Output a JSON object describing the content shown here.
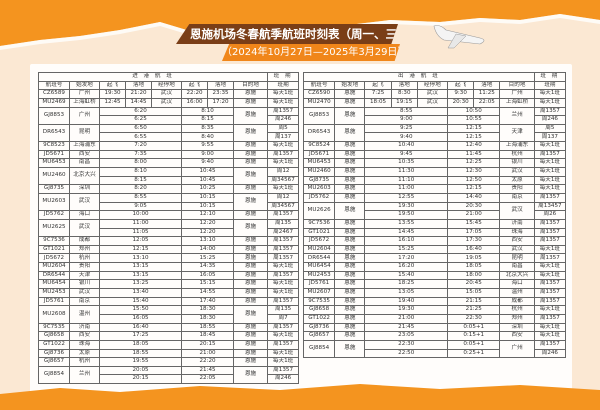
{
  "title": "恩施机场冬春航季航班时刻表（周一、三、五、七）",
  "subtitle": "（2024年10月27日—2025年3月29日）",
  "colors": {
    "orange": "#f0861a",
    "brown": "#7a3e17",
    "cream": "#fbe8d3"
  },
  "inbound": {
    "section": "进 港 航 班",
    "schedule": "班 期",
    "headers": [
      "航班号",
      "始发地",
      "起飞",
      "落地",
      "经停地",
      "起飞",
      "落地",
      "目的地",
      "班期"
    ],
    "rows": [
      {
        "flight": "CZ6589",
        "from": "广州",
        "dep": "19:30",
        "arr": "21:20",
        "via": "武汉",
        "dep2": "22:20",
        "arr2": "23:35",
        "to": "恩施",
        "days": "每天1班"
      },
      {
        "flight": "MU2469",
        "from": "上海虹桥",
        "dep": "12:45",
        "arr": "14:45",
        "via": "武汉",
        "dep2": "16:00",
        "arr2": "17:20",
        "to": "恩施",
        "days": "每天1班"
      },
      {
        "flight": "GJ8853",
        "from": "广州",
        "to": "恩施",
        "legs": [
          {
            "dep": "6:20",
            "arr": "8:10",
            "days": "周1357"
          },
          {
            "dep": "6:25",
            "arr": "8:15",
            "days": "周246"
          }
        ]
      },
      {
        "flight": "DR6543",
        "from": "昆明",
        "to": "恩施",
        "legs": [
          {
            "dep": "6:50",
            "arr": "8:35",
            "days": "周5"
          },
          {
            "dep": "6:55",
            "arr": "8:40",
            "days": "周137"
          }
        ]
      },
      {
        "flight": "9C8523",
        "from": "上海浦东",
        "to": "恩施",
        "legs": [
          {
            "dep": "7:20",
            "arr": "9:55",
            "days": "每天1班"
          }
        ]
      },
      {
        "flight": "JD5671",
        "from": "西安",
        "to": "恩施",
        "legs": [
          {
            "dep": "7:35",
            "arr": "9:00",
            "days": "周1357"
          }
        ]
      },
      {
        "flight": "MU6453",
        "from": "南昌",
        "to": "恩施",
        "legs": [
          {
            "dep": "8:00",
            "arr": "9:40",
            "days": "每天1班"
          }
        ]
      },
      {
        "flight": "MU2460",
        "from": "北京大兴",
        "to": "恩施",
        "legs": [
          {
            "dep": "8:10",
            "arr": "10:45",
            "days": "周12"
          },
          {
            "dep": "8:15",
            "arr": "10:45",
            "days": "周34567"
          }
        ]
      },
      {
        "flight": "GJ8735",
        "from": "深圳",
        "to": "恩施",
        "legs": [
          {
            "dep": "8:20",
            "arr": "10:25",
            "days": "每天1班"
          }
        ]
      },
      {
        "flight": "MU2603",
        "from": "武汉",
        "to": "恩施",
        "legs": [
          {
            "dep": "8:55",
            "arr": "10:15",
            "days": "周12"
          },
          {
            "dep": "9:05",
            "arr": "10:15",
            "days": "周34567"
          }
        ]
      },
      {
        "flight": "JD5762",
        "from": "海口",
        "to": "恩施",
        "legs": [
          {
            "dep": "10:00",
            "arr": "12:10",
            "days": "周1357"
          }
        ]
      },
      {
        "flight": "MU2625",
        "from": "武汉",
        "to": "恩施",
        "legs": [
          {
            "dep": "11:00",
            "arr": "12:20",
            "days": "周135"
          },
          {
            "dep": "11:05",
            "arr": "12:20",
            "days": "周2467"
          }
        ]
      },
      {
        "flight": "9C7536",
        "from": "成都",
        "to": "恩施",
        "legs": [
          {
            "dep": "12:05",
            "arr": "13:10",
            "days": "周1357"
          }
        ]
      },
      {
        "flight": "GT1021",
        "from": "郑州",
        "to": "恩施",
        "legs": [
          {
            "dep": "12:15",
            "arr": "14:00",
            "days": "周1357"
          }
        ]
      },
      {
        "flight": "JD5672",
        "from": "杭州",
        "to": "恩施",
        "legs": [
          {
            "dep": "13:10",
            "arr": "15:25",
            "days": "周1357"
          }
        ]
      },
      {
        "flight": "MU2604",
        "from": "贵阳",
        "to": "恩施",
        "legs": [
          {
            "dep": "13:15",
            "arr": "14:35",
            "days": "每天1班"
          }
        ]
      },
      {
        "flight": "DR6544",
        "from": "天津",
        "to": "恩施",
        "legs": [
          {
            "dep": "13:15",
            "arr": "16:05",
            "days": "周1357"
          }
        ]
      },
      {
        "flight": "MU6454",
        "from": "银川",
        "to": "恩施",
        "legs": [
          {
            "dep": "13:25",
            "arr": "15:15",
            "days": "每天1班"
          }
        ]
      },
      {
        "flight": "MU2453",
        "from": "武汉",
        "to": "恩施",
        "legs": [
          {
            "dep": "13:40",
            "arr": "14:55",
            "days": "每天1班"
          }
        ]
      },
      {
        "flight": "JD5761",
        "from": "南京",
        "to": "恩施",
        "legs": [
          {
            "dep": "15:40",
            "arr": "17:40",
            "days": "周1357"
          }
        ]
      },
      {
        "flight": "MU2608",
        "from": "温州",
        "to": "恩施",
        "legs": [
          {
            "dep": "15:50",
            "arr": "18:30",
            "days": "周135"
          },
          {
            "dep": "16:05",
            "arr": "18:30",
            "days": "周7"
          }
        ]
      },
      {
        "flight": "9C7535",
        "from": "济南",
        "to": "恩施",
        "legs": [
          {
            "dep": "16:40",
            "arr": "18:55",
            "days": "周1357"
          }
        ]
      },
      {
        "flight": "GJ8658",
        "from": "西安",
        "to": "恩施",
        "legs": [
          {
            "dep": "17:25",
            "arr": "18:45",
            "days": "每天1班"
          }
        ]
      },
      {
        "flight": "GT1022",
        "from": "珠海",
        "to": "恩施",
        "legs": [
          {
            "dep": "18:05",
            "arr": "20:15",
            "days": "周1357"
          }
        ]
      },
      {
        "flight": "GJ8736",
        "from": "太原",
        "to": "恩施",
        "legs": [
          {
            "dep": "18:55",
            "arr": "21:00",
            "days": "每天1班"
          }
        ]
      },
      {
        "flight": "GJ8657",
        "from": "杭州",
        "to": "恩施",
        "legs": [
          {
            "dep": "19:55",
            "arr": "22:20",
            "days": "每天1班"
          }
        ]
      },
      {
        "flight": "GJ8854",
        "from": "兰州",
        "to": "恩施",
        "legs": [
          {
            "dep": "20:05",
            "arr": "21:45",
            "days": "周1357"
          },
          {
            "dep": "20:15",
            "arr": "22:05",
            "days": "周246"
          }
        ]
      }
    ]
  },
  "outbound": {
    "section": "出 港 航 班",
    "schedule": "班 期",
    "headers": [
      "航班号",
      "始发地",
      "起飞",
      "落地",
      "经停地",
      "起飞",
      "落地",
      "目的地",
      "班期"
    ],
    "rows": [
      {
        "flight": "CZ6590",
        "from": "恩施",
        "dep": "7:25",
        "arr": "8:30",
        "via": "武汉",
        "dep2": "9:30",
        "arr2": "11:25",
        "to": "广州",
        "days": "每天1班"
      },
      {
        "flight": "MU2470",
        "from": "恩施",
        "dep": "18:05",
        "arr": "19:15",
        "via": "武汉",
        "dep2": "20:30",
        "arr2": "22:05",
        "to": "上海虹桥",
        "days": "每天1班"
      },
      {
        "flight": "GJ8853",
        "from": "恩施",
        "to": "兰州",
        "legs": [
          {
            "dep": "8:55",
            "arr": "10:50",
            "days": "周1357"
          },
          {
            "dep": "9:00",
            "arr": "10:55",
            "days": "周246"
          }
        ]
      },
      {
        "flight": "DR6543",
        "from": "恩施",
        "to": "天津",
        "legs": [
          {
            "dep": "9:25",
            "arr": "12:15",
            "days": "周5"
          },
          {
            "dep": "9:40",
            "arr": "12:15",
            "days": "周137"
          }
        ]
      },
      {
        "flight": "9C8524",
        "from": "恩施",
        "to": "上海浦东",
        "legs": [
          {
            "dep": "10:40",
            "arr": "12:40",
            "days": "每天1班"
          }
        ]
      },
      {
        "flight": "JD5671",
        "from": "恩施",
        "to": "杭州",
        "legs": [
          {
            "dep": "9:45",
            "arr": "11:45",
            "days": "周1357"
          }
        ]
      },
      {
        "flight": "MU6453",
        "from": "恩施",
        "to": "银川",
        "legs": [
          {
            "dep": "10:35",
            "arr": "12:25",
            "days": "每天1班"
          }
        ]
      },
      {
        "flight": "MU2460",
        "from": "恩施",
        "to": "武汉",
        "legs": [
          {
            "dep": "11:30",
            "arr": "12:30",
            "days": "每天1班"
          }
        ]
      },
      {
        "flight": "GJ8735",
        "from": "恩施",
        "to": "太原",
        "legs": [
          {
            "dep": "11:10",
            "arr": "12:50",
            "days": "每天1班"
          }
        ]
      },
      {
        "flight": "MU2603",
        "from": "恩施",
        "to": "贵阳",
        "legs": [
          {
            "dep": "11:00",
            "arr": "12:15",
            "days": "每天1班"
          }
        ]
      },
      {
        "flight": "JD5762",
        "from": "恩施",
        "to": "南京",
        "legs": [
          {
            "dep": "12:55",
            "arr": "14:40",
            "days": "周1357"
          }
        ]
      },
      {
        "flight": "MU2626",
        "from": "恩施",
        "to": "武汉",
        "legs": [
          {
            "dep": "19:30",
            "arr": "20:30",
            "days": "周13457"
          },
          {
            "dep": "19:50",
            "arr": "21:00",
            "days": "周26"
          }
        ]
      },
      {
        "flight": "9C7536",
        "from": "恩施",
        "to": "济南",
        "legs": [
          {
            "dep": "13:55",
            "arr": "15:45",
            "days": "周1357"
          }
        ]
      },
      {
        "flight": "GT1021",
        "from": "恩施",
        "to": "珠海",
        "legs": [
          {
            "dep": "14:45",
            "arr": "17:05",
            "days": "周1357"
          }
        ]
      },
      {
        "flight": "JD5672",
        "from": "恩施",
        "to": "西安",
        "legs": [
          {
            "dep": "16:10",
            "arr": "17:30",
            "days": "周1357"
          }
        ]
      },
      {
        "flight": "MU2604",
        "from": "恩施",
        "to": "武汉",
        "legs": [
          {
            "dep": "15:25",
            "arr": "16:40",
            "days": "每天1班"
          }
        ]
      },
      {
        "flight": "DR6544",
        "from": "恩施",
        "to": "昆明",
        "legs": [
          {
            "dep": "17:20",
            "arr": "19:05",
            "days": "周1357"
          }
        ]
      },
      {
        "flight": "MU6454",
        "from": "恩施",
        "to": "南昌",
        "legs": [
          {
            "dep": "16:20",
            "arr": "18:05",
            "days": "每天1班"
          }
        ]
      },
      {
        "flight": "MU2453",
        "from": "恩施",
        "to": "北京大兴",
        "legs": [
          {
            "dep": "15:40",
            "arr": "18:00",
            "days": "每天1班"
          }
        ]
      },
      {
        "flight": "JD5761",
        "from": "恩施",
        "to": "海口",
        "legs": [
          {
            "dep": "18:25",
            "arr": "20:45",
            "days": "周1357"
          }
        ]
      },
      {
        "flight": "MU2607",
        "from": "恩施",
        "to": "温州",
        "legs": [
          {
            "dep": "13:05",
            "arr": "15:05",
            "days": "周1357"
          }
        ]
      },
      {
        "flight": "9C7535",
        "from": "恩施",
        "to": "成都",
        "legs": [
          {
            "dep": "19:40",
            "arr": "21:15",
            "days": "周1357"
          }
        ]
      },
      {
        "flight": "GJ8658",
        "from": "恩施",
        "to": "杭州",
        "legs": [
          {
            "dep": "19:30",
            "arr": "21:25",
            "days": "每天1班"
          }
        ]
      },
      {
        "flight": "GT1022",
        "from": "恩施",
        "to": "郑州",
        "legs": [
          {
            "dep": "21:00",
            "arr": "22:30",
            "days": "周1357"
          }
        ]
      },
      {
        "flight": "GJ8736",
        "from": "恩施",
        "to": "深圳",
        "legs": [
          {
            "dep": "21:45",
            "arr": "0:05+1",
            "days": "每天1班"
          }
        ]
      },
      {
        "flight": "GJ8657",
        "from": "恩施",
        "to": "西安",
        "legs": [
          {
            "dep": "23:05",
            "arr": "0:15+1",
            "days": "每天1班"
          }
        ]
      },
      {
        "flight": "GJ8854",
        "from": "恩施",
        "to": "广州",
        "legs": [
          {
            "dep": "22:30",
            "arr": "0:05+1",
            "days": "周1357"
          },
          {
            "dep": "22:50",
            "arr": "0:25+1",
            "days": "周246"
          }
        ]
      }
    ]
  }
}
